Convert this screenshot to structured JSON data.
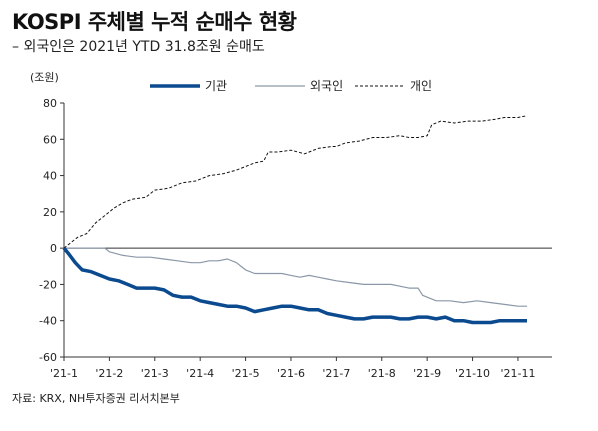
{
  "title": "KOSPI 주체별 누적 순매수 현황",
  "subtitle": "– 외국인은 2021년 YTD 31.8조원 순매도",
  "source": "자료: KRX, NH투자증권 리서치본부",
  "chart_data": {
    "type": "line",
    "ylabel": "(조원)",
    "ylim": [
      -60,
      80
    ],
    "yticks": [
      -60,
      -40,
      -20,
      0,
      20,
      40,
      60,
      80
    ],
    "categories": [
      "'21-1",
      "'21-2",
      "'21-3",
      "'21-4",
      "'21-5",
      "'21-6",
      "'21-7",
      "'21-8",
      "'21-9",
      "'21-10",
      "'21-11"
    ],
    "legend_position": "top",
    "series": [
      {
        "name": "기관",
        "color": "#0b4a8f",
        "style": "solid-thick",
        "points": [
          [
            0,
            0
          ],
          [
            0.1,
            -3
          ],
          [
            0.25,
            -8
          ],
          [
            0.4,
            -12
          ],
          [
            0.6,
            -13
          ],
          [
            0.8,
            -15
          ],
          [
            1.0,
            -17
          ],
          [
            1.2,
            -18
          ],
          [
            1.4,
            -20
          ],
          [
            1.6,
            -22
          ],
          [
            1.8,
            -22
          ],
          [
            2.0,
            -22
          ],
          [
            2.2,
            -23
          ],
          [
            2.4,
            -26
          ],
          [
            2.6,
            -27
          ],
          [
            2.8,
            -27
          ],
          [
            3.0,
            -29
          ],
          [
            3.2,
            -30
          ],
          [
            3.4,
            -31
          ],
          [
            3.6,
            -32
          ],
          [
            3.8,
            -32
          ],
          [
            4.0,
            -33
          ],
          [
            4.2,
            -35
          ],
          [
            4.4,
            -34
          ],
          [
            4.6,
            -33
          ],
          [
            4.8,
            -32
          ],
          [
            5.0,
            -32
          ],
          [
            5.2,
            -33
          ],
          [
            5.4,
            -34
          ],
          [
            5.6,
            -34
          ],
          [
            5.8,
            -36
          ],
          [
            6.0,
            -37
          ],
          [
            6.2,
            -38
          ],
          [
            6.4,
            -39
          ],
          [
            6.6,
            -39
          ],
          [
            6.8,
            -38
          ],
          [
            7.0,
            -38
          ],
          [
            7.2,
            -38
          ],
          [
            7.4,
            -39
          ],
          [
            7.6,
            -39
          ],
          [
            7.8,
            -38
          ],
          [
            8.0,
            -38
          ],
          [
            8.2,
            -39
          ],
          [
            8.4,
            -38
          ],
          [
            8.6,
            -40
          ],
          [
            8.8,
            -40
          ],
          [
            9.0,
            -41
          ],
          [
            9.2,
            -41
          ],
          [
            9.4,
            -41
          ],
          [
            9.6,
            -40
          ],
          [
            9.8,
            -40
          ],
          [
            10.0,
            -40
          ],
          [
            10.2,
            -40
          ]
        ]
      },
      {
        "name": "외국인",
        "color": "#8a97a8",
        "style": "solid-thin",
        "points": [
          [
            0,
            0
          ],
          [
            0.3,
            0
          ],
          [
            0.6,
            0
          ],
          [
            0.9,
            0
          ],
          [
            1.0,
            -2
          ],
          [
            1.3,
            -4
          ],
          [
            1.6,
            -5
          ],
          [
            1.9,
            -5
          ],
          [
            2.2,
            -6
          ],
          [
            2.5,
            -7
          ],
          [
            2.8,
            -8
          ],
          [
            3.0,
            -8
          ],
          [
            3.2,
            -7
          ],
          [
            3.4,
            -7
          ],
          [
            3.6,
            -6
          ],
          [
            3.8,
            -8
          ],
          [
            4.0,
            -12
          ],
          [
            4.2,
            -14
          ],
          [
            4.4,
            -14
          ],
          [
            4.6,
            -14
          ],
          [
            4.8,
            -14
          ],
          [
            5.0,
            -15
          ],
          [
            5.2,
            -16
          ],
          [
            5.4,
            -15
          ],
          [
            5.6,
            -16
          ],
          [
            5.8,
            -17
          ],
          [
            6.0,
            -18
          ],
          [
            6.3,
            -19
          ],
          [
            6.6,
            -20
          ],
          [
            6.9,
            -20
          ],
          [
            7.2,
            -20
          ],
          [
            7.4,
            -21
          ],
          [
            7.6,
            -22
          ],
          [
            7.8,
            -22
          ],
          [
            7.9,
            -26
          ],
          [
            8.2,
            -29
          ],
          [
            8.5,
            -29
          ],
          [
            8.8,
            -30
          ],
          [
            9.1,
            -29
          ],
          [
            9.4,
            -30
          ],
          [
            9.7,
            -31
          ],
          [
            10.0,
            -32
          ],
          [
            10.2,
            -32
          ]
        ]
      },
      {
        "name": "개인",
        "color": "#111111",
        "style": "dashed",
        "points": [
          [
            0,
            0
          ],
          [
            0.15,
            3
          ],
          [
            0.3,
            6
          ],
          [
            0.5,
            8
          ],
          [
            0.7,
            14
          ],
          [
            0.9,
            18
          ],
          [
            1.1,
            22
          ],
          [
            1.3,
            25
          ],
          [
            1.5,
            27
          ],
          [
            1.8,
            28
          ],
          [
            2.0,
            32
          ],
          [
            2.3,
            33
          ],
          [
            2.6,
            36
          ],
          [
            2.9,
            37
          ],
          [
            3.2,
            40
          ],
          [
            3.5,
            41
          ],
          [
            3.8,
            43
          ],
          [
            4.0,
            45
          ],
          [
            4.2,
            47
          ],
          [
            4.4,
            48
          ],
          [
            4.5,
            53
          ],
          [
            4.7,
            53
          ],
          [
            5.0,
            54
          ],
          [
            5.3,
            52
          ],
          [
            5.6,
            55
          ],
          [
            5.9,
            56
          ],
          [
            6.0,
            56
          ],
          [
            6.2,
            58
          ],
          [
            6.5,
            59
          ],
          [
            6.8,
            61
          ],
          [
            7.1,
            61
          ],
          [
            7.4,
            62
          ],
          [
            7.6,
            61
          ],
          [
            7.8,
            61
          ],
          [
            8.0,
            62
          ],
          [
            8.1,
            68
          ],
          [
            8.3,
            70
          ],
          [
            8.6,
            69
          ],
          [
            8.9,
            70
          ],
          [
            9.2,
            70
          ],
          [
            9.5,
            71
          ],
          [
            9.7,
            72
          ],
          [
            10.0,
            72
          ],
          [
            10.2,
            73
          ]
        ]
      }
    ]
  }
}
